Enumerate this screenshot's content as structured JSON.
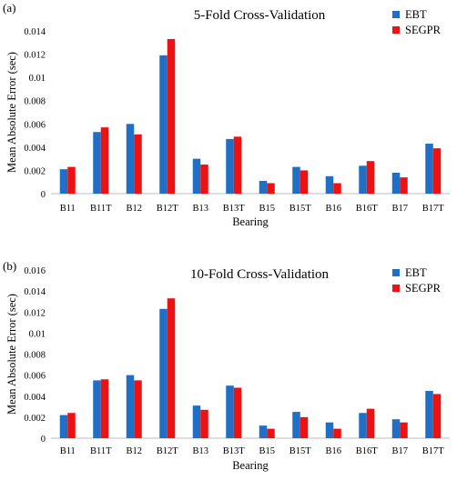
{
  "chart_data": [
    {
      "type": "bar",
      "panel_label": "(a)",
      "title": "5-Fold Cross-Validation",
      "xlabel": "Bearing",
      "ylabel": "Mean Absolute Error (sec)",
      "ylim": [
        0,
        0.014
      ],
      "yticks": [
        "0",
        "0.002",
        "0.004",
        "0.006",
        "0.008",
        "0.01",
        "0.012",
        "0.014"
      ],
      "categories": [
        "B11",
        "B11T",
        "B12",
        "B12T",
        "B13",
        "B13T",
        "B15",
        "B15T",
        "B16",
        "B16T",
        "B17",
        "B17T"
      ],
      "legend_position": "top-right",
      "series": [
        {
          "name": "EBT",
          "color": "#1f6fc6",
          "values": [
            0.0021,
            0.0053,
            0.006,
            0.0119,
            0.003,
            0.0047,
            0.0011,
            0.0023,
            0.0015,
            0.0024,
            0.0018,
            0.0043
          ]
        },
        {
          "name": "SEGPR",
          "color": "#ee1111",
          "values": [
            0.0023,
            0.0057,
            0.0051,
            0.0133,
            0.0025,
            0.0049,
            0.0009,
            0.002,
            0.0009,
            0.0028,
            0.0014,
            0.0039
          ]
        }
      ]
    },
    {
      "type": "bar",
      "panel_label": "(b)",
      "title": "10-Fold Cross-Validation",
      "xlabel": "Bearing",
      "ylabel": "Mean Absolute Error (sec)",
      "ylim": [
        0,
        0.016
      ],
      "yticks": [
        "0",
        "0.002",
        "0.004",
        "0.006",
        "0.008",
        "0.01",
        "0.012",
        "0.014",
        "0.016"
      ],
      "categories": [
        "B11",
        "B11T",
        "B12",
        "B12T",
        "B13",
        "B13T",
        "B15",
        "B15T",
        "B16",
        "B16T",
        "B17",
        "B17T"
      ],
      "legend_position": "top-right",
      "series": [
        {
          "name": "EBT",
          "color": "#1f6fc6",
          "values": [
            0.0022,
            0.0055,
            0.006,
            0.0123,
            0.0031,
            0.005,
            0.0012,
            0.0025,
            0.0015,
            0.0024,
            0.0018,
            0.0045
          ]
        },
        {
          "name": "SEGPR",
          "color": "#ee1111",
          "values": [
            0.0024,
            0.0056,
            0.0055,
            0.0133,
            0.0027,
            0.0048,
            0.0009,
            0.002,
            0.0009,
            0.0028,
            0.0015,
            0.0042
          ]
        }
      ]
    }
  ]
}
